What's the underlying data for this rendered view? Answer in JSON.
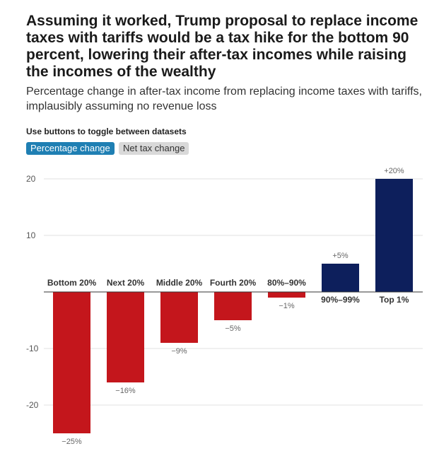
{
  "title": "Assuming it worked, Trump proposal to replace income taxes with tariffs would be a tax hike for the bottom 90 percent, lowering their after-tax incomes while raising the incomes of the wealthy",
  "subtitle": "Percentage change in after-tax income from replacing income taxes with tariffs, implausibly assuming no revenue loss",
  "toggle": {
    "label": "Use buttons to toggle between datasets",
    "options": [
      "Percentage change",
      "Net tax change"
    ],
    "selected": "Percentage change"
  },
  "colors": {
    "negative": "#c4161c",
    "positive": "#0d1f5c",
    "active_button": "#1f7fb3",
    "inactive_button": "#d9d9d9"
  },
  "chart_data": {
    "type": "bar",
    "categories": [
      "Bottom 20%",
      "Next 20%",
      "Middle 20%",
      "Fourth 20%",
      "80%–90%",
      "90%–99%",
      "Top 1%"
    ],
    "values": [
      -25,
      -16,
      -9,
      -5,
      -1,
      5,
      20
    ],
    "data_labels": [
      "−25%",
      "−16%",
      "−9%",
      "−5%",
      "−1%",
      "+5%",
      "+20%"
    ],
    "yticks": [
      20,
      10,
      -10,
      -20
    ],
    "ytick_labels": [
      "20",
      "10",
      "-10",
      "-20"
    ],
    "ylim": [
      -25,
      20
    ],
    "grid": true
  }
}
